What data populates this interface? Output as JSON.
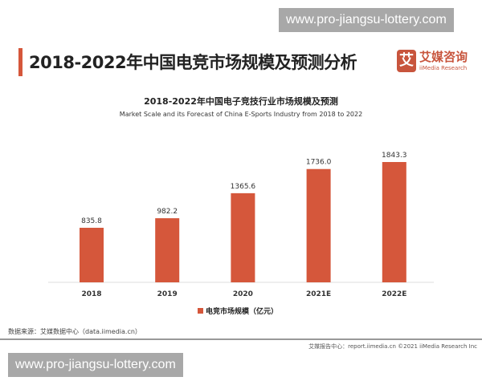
{
  "watermark": "www.pro-jiangsu-lottery.com",
  "page_title": "2018-2022年中国电竞市场规模及预测分析",
  "logo": {
    "mark": "艾",
    "cn": "艾媒咨询",
    "en": "iiMedia Research"
  },
  "source": "数据来源：艾媒数据中心（data.iimedia.cn）",
  "footer": "艾媒报告中心：report.iimedia.cn   ©2021  iiMedia Research  Inc",
  "colors": {
    "bar": "#d5573b",
    "accent": "#d5573b"
  },
  "chart_data": {
    "type": "bar",
    "title": "2018-2022年中国电子竞技行业市场规模及预测",
    "subtitle": "Market Scale and its Forecast of China E-Sports Industry from 2018 to 2022",
    "categories": [
      "2018",
      "2019",
      "2020",
      "2021E",
      "2022E"
    ],
    "series": [
      {
        "name": "电竞市场规模（亿元）",
        "values": [
          835.8,
          982.2,
          1365.6,
          1736.0,
          1843.3
        ]
      }
    ],
    "data_labels": [
      "835.8",
      "982.2",
      "1365.6",
      "1736.0",
      "1843.3"
    ],
    "ylim": [
      0,
      1843.3
    ],
    "grid": false,
    "legend_position": "bottom"
  }
}
